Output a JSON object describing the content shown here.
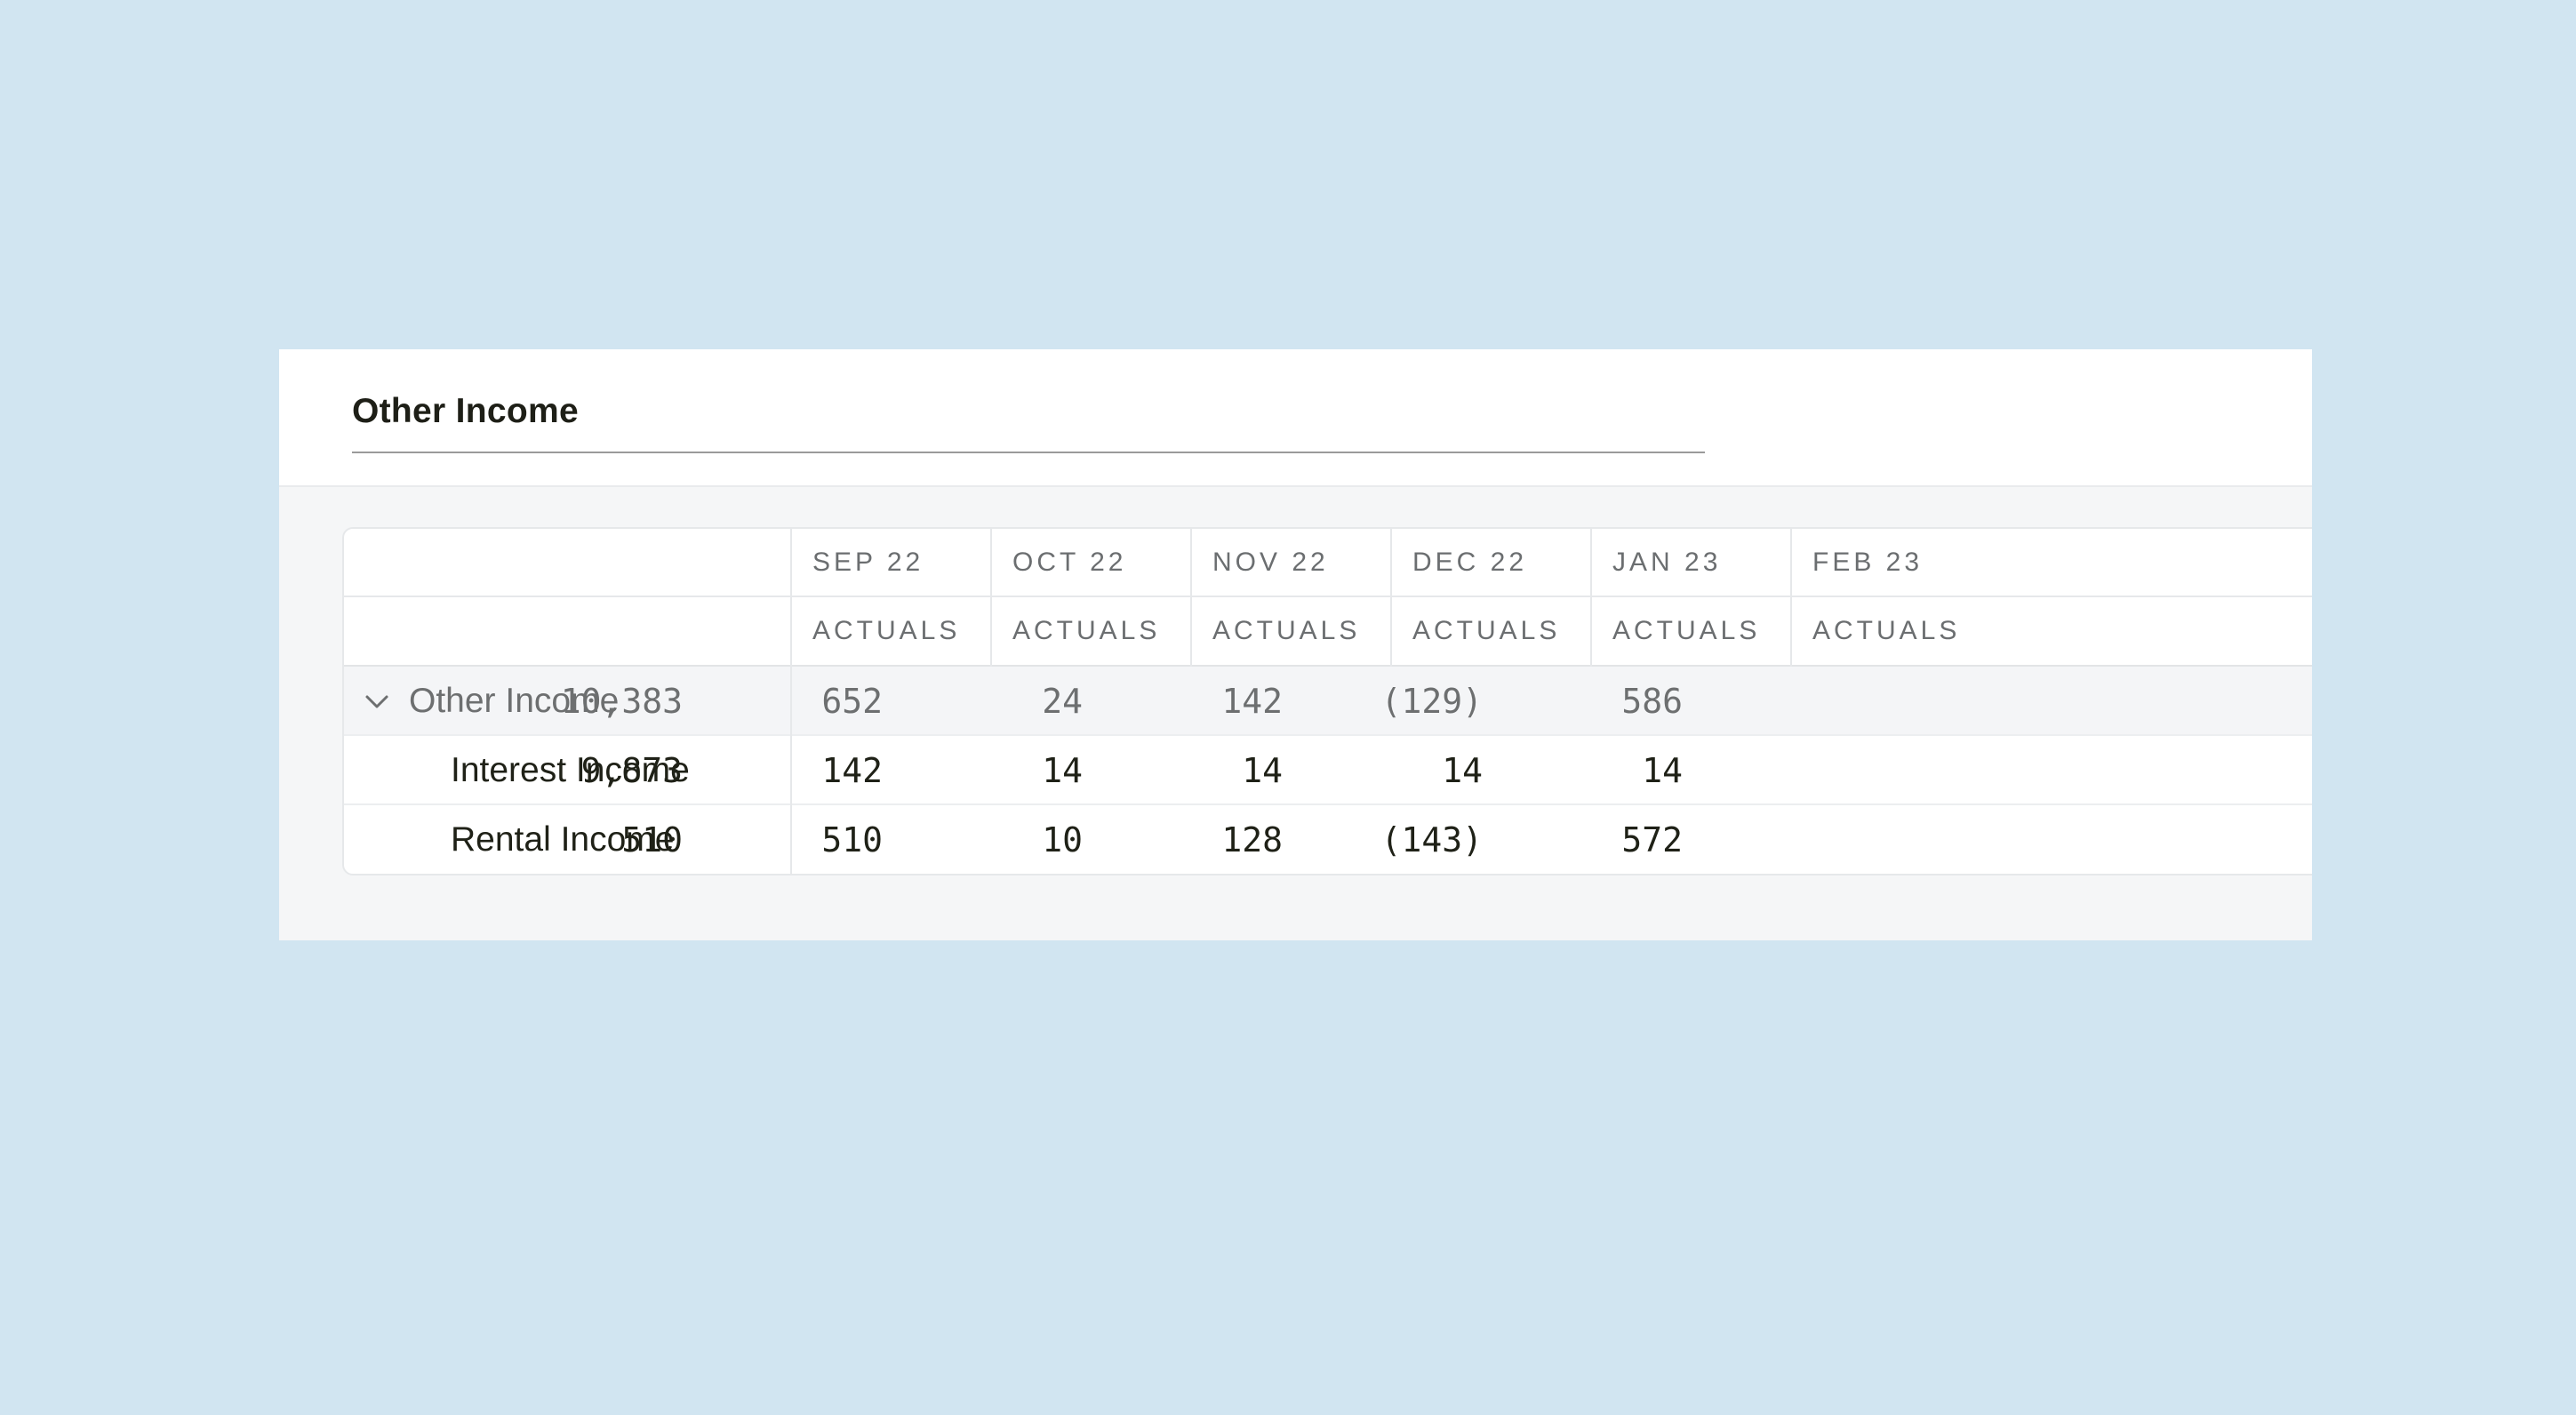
{
  "section": {
    "title": "Other Income"
  },
  "table": {
    "months": [
      "SEP 22",
      "OCT 22",
      "NOV 22",
      "DEC 22",
      "JAN 23",
      "FEB 23"
    ],
    "scenario": [
      "ACTUALS",
      "ACTUALS",
      "ACTUALS",
      "ACTUALS",
      "ACTUALS",
      "ACTUALS"
    ],
    "group": {
      "label": "Other Income",
      "expanded": true,
      "values": [
        "10,383",
        "652",
        "24",
        "142",
        "(129)",
        "586"
      ]
    },
    "rows": [
      {
        "label": "Interest Income",
        "values": [
          "9,873",
          "142",
          "14",
          "14",
          "14",
          "14"
        ]
      },
      {
        "label": "Rental Income",
        "values": [
          "510",
          "510",
          "10",
          "128",
          "(143)",
          "572"
        ]
      }
    ]
  }
}
